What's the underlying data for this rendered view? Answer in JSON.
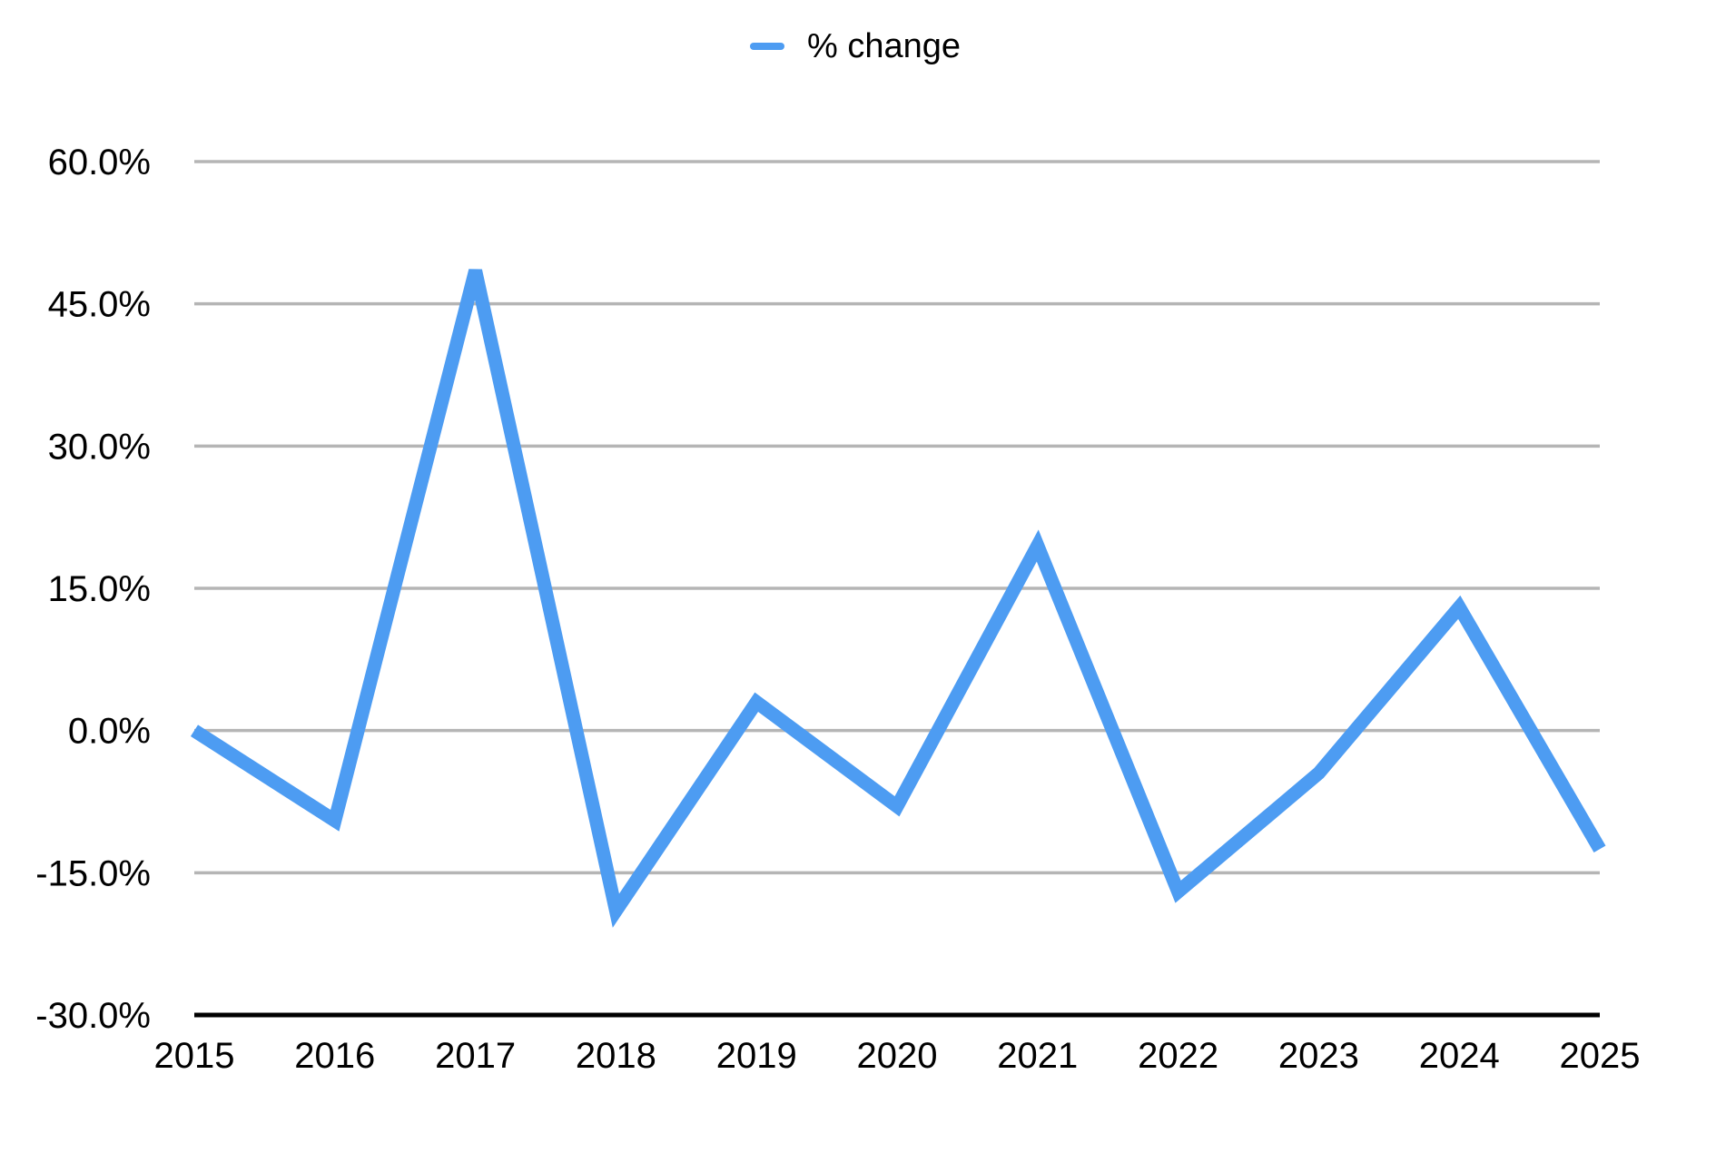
{
  "chart_data": {
    "type": "line",
    "title": "",
    "xlabel": "",
    "ylabel": "",
    "categories": [
      "2015",
      "2016",
      "2017",
      "2018",
      "2019",
      "2020",
      "2021",
      "2022",
      "2023",
      "2024",
      "2025"
    ],
    "series": [
      {
        "name": "% change",
        "color": "#4d9cf2",
        "values": [
          0,
          -9.5,
          48.5,
          -19,
          3,
          -8,
          19.5,
          -17,
          -4.5,
          13,
          -12.5
        ]
      }
    ],
    "ylim": [
      -30,
      60
    ],
    "y_ticks": [
      {
        "value": 60,
        "label": "60.0%"
      },
      {
        "value": 45,
        "label": "45.0%"
      },
      {
        "value": 30,
        "label": "30.0%"
      },
      {
        "value": 15,
        "label": "15.0%"
      },
      {
        "value": 0,
        "label": "0.0%"
      },
      {
        "value": -15,
        "label": "-15.0%"
      },
      {
        "value": -30,
        "label": "-30.0%"
      }
    ],
    "grid": true,
    "legend_position": "top-center",
    "colors": {
      "series": "#4d9cf2",
      "gridline": "#b5b5b5",
      "axis_line": "#000000",
      "text": "#000000",
      "background": "#ffffff"
    }
  }
}
